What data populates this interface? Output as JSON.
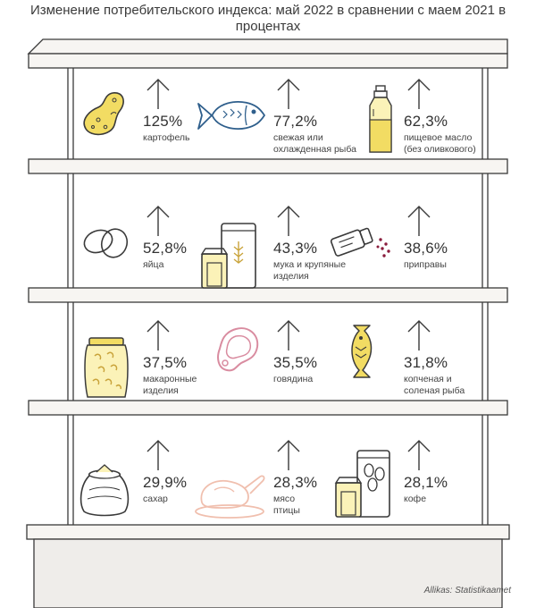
{
  "title": "Изменение потребительского индекса: май 2022 в сравнении с маем 2021 в процентах",
  "source": "Allikas: Statistikaamet",
  "colors": {
    "shelf_fill": "#f7f5f2",
    "shelf_stroke": "#3a3a3a",
    "yellow": "#f2dc63",
    "pink": "#e8b8c2",
    "peach": "#f3cfc2",
    "wine": "#8a1c3c"
  },
  "items": [
    {
      "pct": "125%",
      "label": "картофель",
      "icon": "potato-icon"
    },
    {
      "pct": "77,2%",
      "label": "свежая или\nохлажденная рыба",
      "icon": "fish-icon"
    },
    {
      "pct": "62,3%",
      "label": "пищевое масло\n(без оливкового)",
      "icon": "oil-bottle-icon"
    },
    {
      "pct": "52,8%",
      "label": "яйца",
      "icon": "eggs-icon"
    },
    {
      "pct": "43,3%",
      "label": "мука и крупяные\nизделия",
      "icon": "flour-bags-icon"
    },
    {
      "pct": "38,6%",
      "label": "приправы",
      "icon": "spice-shaker-icon"
    },
    {
      "pct": "37,5%",
      "label": "макаронные\nизделия",
      "icon": "pasta-jar-icon"
    },
    {
      "pct": "35,5%",
      "label": "говядина",
      "icon": "beef-steak-icon"
    },
    {
      "pct": "31,8%",
      "label": "копченая и\nсоленая рыба",
      "icon": "smoked-fish-icon"
    },
    {
      "pct": "29,9%",
      "label": "сахар",
      "icon": "sugar-sack-icon"
    },
    {
      "pct": "28,3%",
      "label": "мясо\nптицы",
      "icon": "poultry-icon"
    },
    {
      "pct": "28,1%",
      "label": "кофе",
      "icon": "coffee-bags-icon"
    }
  ],
  "chart_data": {
    "type": "table",
    "title": "Изменение потребительского индекса: май 2022 в сравнении с маем 2021 в процентах",
    "categories": [
      "картофель",
      "свежая или охлажденная рыба",
      "пищевое масло (без оливкового)",
      "яйца",
      "мука и крупяные изделия",
      "приправы",
      "макаронные изделия",
      "говядина",
      "копченая и соленая рыба",
      "сахар",
      "мясо птицы",
      "кофе"
    ],
    "values": [
      125,
      77.2,
      62.3,
      52.8,
      43.3,
      38.6,
      37.5,
      35.5,
      31.8,
      29.9,
      28.3,
      28.1
    ],
    "unit": "%"
  }
}
